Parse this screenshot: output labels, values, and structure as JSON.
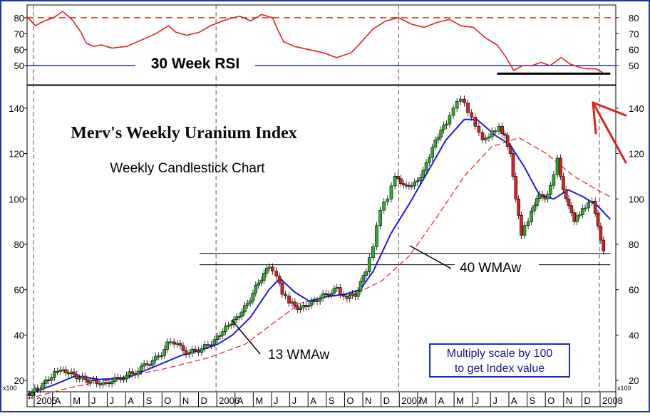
{
  "chart_data": [
    {
      "type": "line",
      "panel": "rsi",
      "title": "30 Week RSI",
      "ylim": [
        38,
        88
      ],
      "y_ticks": [
        50,
        60,
        70,
        80
      ],
      "reference_lines": [
        {
          "name": "overbought",
          "value": 80,
          "color": "#e03030",
          "style": "dashed"
        },
        {
          "name": "midline",
          "value": 50,
          "color": "#1a2ac8",
          "style": "solid"
        },
        {
          "name": "support",
          "value": 45,
          "color": "#000000",
          "style": "solid",
          "x_start": 2007.53,
          "x_end": 2008.15
        }
      ],
      "series": [
        {
          "name": "RSI",
          "color": "#e02020",
          "points": [
            [
              2004.96,
              80
            ],
            [
              2005.0,
              75
            ],
            [
              2005.05,
              78
            ],
            [
              2005.1,
              80
            ],
            [
              2005.15,
              84
            ],
            [
              2005.2,
              79
            ],
            [
              2005.25,
              71
            ],
            [
              2005.28,
              64
            ],
            [
              2005.32,
              62
            ],
            [
              2005.36,
              63
            ],
            [
              2005.42,
              61
            ],
            [
              2005.5,
              62
            ],
            [
              2005.58,
              66
            ],
            [
              2005.66,
              70
            ],
            [
              2005.73,
              75
            ],
            [
              2005.77,
              71
            ],
            [
              2005.83,
              69
            ],
            [
              2005.9,
              71
            ],
            [
              2005.96,
              75
            ],
            [
              2006.05,
              79
            ],
            [
              2006.12,
              81
            ],
            [
              2006.18,
              78
            ],
            [
              2006.24,
              82
            ],
            [
              2006.3,
              80
            ],
            [
              2006.33,
              72
            ],
            [
              2006.36,
              65
            ],
            [
              2006.42,
              62
            ],
            [
              2006.5,
              60
            ],
            [
              2006.58,
              58
            ],
            [
              2006.65,
              55
            ],
            [
              2006.73,
              58
            ],
            [
              2006.78,
              64
            ],
            [
              2006.85,
              73
            ],
            [
              2006.92,
              78
            ],
            [
              2006.99,
              80
            ],
            [
              2007.06,
              76
            ],
            [
              2007.13,
              74
            ],
            [
              2007.2,
              77
            ],
            [
              2007.27,
              79
            ],
            [
              2007.33,
              75
            ],
            [
              2007.4,
              74
            ],
            [
              2007.47,
              67
            ],
            [
              2007.53,
              63
            ],
            [
              2007.58,
              55
            ],
            [
              2007.62,
              47
            ],
            [
              2007.67,
              50
            ],
            [
              2007.72,
              50
            ],
            [
              2007.77,
              52
            ],
            [
              2007.82,
              50
            ],
            [
              2007.88,
              55
            ],
            [
              2007.93,
              51
            ],
            [
              2007.98,
              49
            ],
            [
              2008.02,
              48
            ],
            [
              2008.07,
              48
            ],
            [
              2008.12,
              45
            ]
          ]
        }
      ]
    },
    {
      "type": "candlestick",
      "panel": "price",
      "title": "Merv's Weekly Uranium Index",
      "subtitle": "Weekly Candlestick Chart",
      "ylim": [
        15,
        150
      ],
      "y_ticks": [
        20,
        40,
        60,
        80,
        100,
        120,
        140
      ],
      "x_ticks": [
        "2005",
        "A",
        "M",
        "J",
        "J",
        "A",
        "S",
        "O",
        "N",
        "D",
        "2006",
        "A",
        "M",
        "J",
        "J",
        "A",
        "S",
        "O",
        "N",
        "D",
        "2007",
        "M",
        "A",
        "M",
        "J",
        "J",
        "A",
        "S",
        "O",
        "N",
        "D",
        "2008"
      ],
      "scale_label": "x100",
      "horizontal_lines": [
        {
          "value": 76,
          "x_start": 2005.9,
          "x_end": 2008.15
        },
        {
          "value": 71,
          "x_start": 2005.9,
          "x_end": 2008.15
        }
      ],
      "annotations": [
        {
          "text": "40 WMAw",
          "target": "40-week moving average"
        },
        {
          "text": "13 WMAw",
          "target": "13-week moving average"
        },
        {
          "text": "Multiply scale by 100",
          "line": 1
        },
        {
          "text": "to get Index value",
          "line": 2
        }
      ],
      "series": [
        {
          "name": "Weekly Close",
          "color_up": "#2ab02a",
          "color_down": "#e02020",
          "points": [
            [
              2004.96,
              14
            ],
            [
              2005.02,
              16
            ],
            [
              2005.08,
              20
            ],
            [
              2005.13,
              24
            ],
            [
              2005.19,
              23
            ],
            [
              2005.25,
              21
            ],
            [
              2005.31,
              20
            ],
            [
              2005.38,
              19
            ],
            [
              2005.46,
              21
            ],
            [
              2005.54,
              23
            ],
            [
              2005.62,
              27
            ],
            [
              2005.7,
              31
            ],
            [
              2005.73,
              37
            ],
            [
              2005.77,
              36
            ],
            [
              2005.85,
              32
            ],
            [
              2005.92,
              34
            ],
            [
              2005.99,
              38
            ],
            [
              2006.05,
              44
            ],
            [
              2006.11,
              48
            ],
            [
              2006.17,
              54
            ],
            [
              2006.23,
              63
            ],
            [
              2006.29,
              70
            ],
            [
              2006.33,
              66
            ],
            [
              2006.36,
              58
            ],
            [
              2006.4,
              54
            ],
            [
              2006.46,
              52
            ],
            [
              2006.52,
              55
            ],
            [
              2006.6,
              58
            ],
            [
              2006.66,
              61
            ],
            [
              2006.7,
              57
            ],
            [
              2006.76,
              57
            ],
            [
              2006.82,
              68
            ],
            [
              2006.86,
              79
            ],
            [
              2006.9,
              95
            ],
            [
              2006.94,
              100
            ],
            [
              2006.98,
              110
            ],
            [
              2007.04,
              106
            ],
            [
              2007.1,
              108
            ],
            [
              2007.15,
              116
            ],
            [
              2007.2,
              126
            ],
            [
              2007.26,
              133
            ],
            [
              2007.3,
              140
            ],
            [
              2007.34,
              144
            ],
            [
              2007.38,
              138
            ],
            [
              2007.42,
              132
            ],
            [
              2007.46,
              126
            ],
            [
              2007.51,
              130
            ],
            [
              2007.55,
              132
            ],
            [
              2007.58,
              128
            ],
            [
              2007.61,
              120
            ],
            [
              2007.64,
              100
            ],
            [
              2007.67,
              84
            ],
            [
              2007.71,
              90
            ],
            [
              2007.74,
              97
            ],
            [
              2007.77,
              102
            ],
            [
              2007.8,
              100
            ],
            [
              2007.83,
              106
            ],
            [
              2007.87,
              118
            ],
            [
              2007.9,
              104
            ],
            [
              2007.93,
              97
            ],
            [
              2007.96,
              90
            ],
            [
              2007.99,
              93
            ],
            [
              2008.02,
              96
            ],
            [
              2008.06,
              99
            ],
            [
              2008.09,
              88
            ],
            [
              2008.12,
              77
            ]
          ]
        },
        {
          "name": "13 WMAw",
          "color": "#1a1ae6",
          "style": "solid",
          "points": [
            [
              2004.96,
              14
            ],
            [
              2005.1,
              18
            ],
            [
              2005.22,
              22
            ],
            [
              2005.35,
              20.5
            ],
            [
              2005.5,
              21
            ],
            [
              2005.65,
              26
            ],
            [
              2005.8,
              31
            ],
            [
              2005.93,
              34
            ],
            [
              2006.0,
              36
            ],
            [
              2006.08,
              40
            ],
            [
              2006.18,
              48
            ],
            [
              2006.28,
              60
            ],
            [
              2006.34,
              65
            ],
            [
              2006.42,
              59
            ],
            [
              2006.5,
              55
            ],
            [
              2006.6,
              57
            ],
            [
              2006.7,
              58
            ],
            [
              2006.78,
              60
            ],
            [
              2006.85,
              68
            ],
            [
              2006.95,
              85
            ],
            [
              2007.05,
              98
            ],
            [
              2007.15,
              112
            ],
            [
              2007.25,
              126
            ],
            [
              2007.35,
              135
            ],
            [
              2007.42,
              135
            ],
            [
              2007.52,
              128
            ],
            [
              2007.6,
              124
            ],
            [
              2007.68,
              114
            ],
            [
              2007.76,
              102
            ],
            [
              2007.84,
              100
            ],
            [
              2007.92,
              104
            ],
            [
              2008.0,
              101
            ],
            [
              2008.08,
              97
            ],
            [
              2008.15,
              91
            ]
          ]
        },
        {
          "name": "40 WMAw",
          "color": "#e02020",
          "style": "dashed",
          "points": [
            [
              2004.96,
              12
            ],
            [
              2005.2,
              17
            ],
            [
              2005.45,
              21
            ],
            [
              2005.7,
              25
            ],
            [
              2005.95,
              30
            ],
            [
              2006.15,
              36
            ],
            [
              2006.3,
              45
            ],
            [
              2006.45,
              54
            ],
            [
              2006.6,
              57
            ],
            [
              2006.75,
              58
            ],
            [
              2006.9,
              64
            ],
            [
              2007.05,
              75
            ],
            [
              2007.2,
              92
            ],
            [
              2007.35,
              110
            ],
            [
              2007.5,
              123
            ],
            [
              2007.65,
              127
            ],
            [
              2007.8,
              120
            ],
            [
              2007.95,
              110
            ],
            [
              2008.1,
              103
            ],
            [
              2008.15,
              101
            ]
          ]
        }
      ]
    }
  ]
}
